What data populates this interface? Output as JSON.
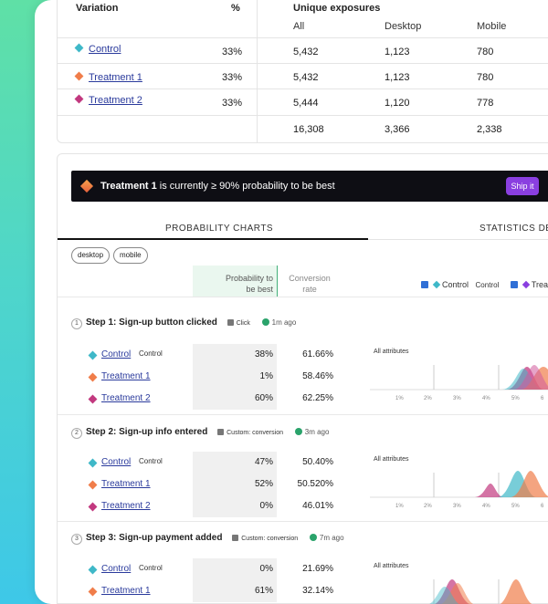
{
  "top_table": {
    "headers": {
      "variation": "Variation",
      "percent": "%",
      "unique_exposures": "Unique exposures"
    },
    "subheaders": {
      "all": "All",
      "desktop": "Desktop",
      "mobile": "Mobile"
    },
    "rows": [
      {
        "name": "Control",
        "color": "#3fb8c8",
        "percent": "33%",
        "all": "5,432",
        "desktop": "1,123",
        "mobile": "780"
      },
      {
        "name": "Treatment 1",
        "color": "#f07d4a",
        "percent": "33%",
        "all": "5,432",
        "desktop": "1,123",
        "mobile": "780"
      },
      {
        "name": "Treatment 2",
        "color": "#c2397f",
        "percent": "33%",
        "all": "5,444",
        "desktop": "1,120",
        "mobile": "778"
      }
    ],
    "totals": {
      "all": "16,308",
      "desktop": "3,366",
      "mobile": "2,338"
    }
  },
  "banner": {
    "variant": "Treatment 1",
    "message": " is currently ≥ 90% probability to be best",
    "ship_label": "Ship it"
  },
  "tabs": {
    "probability": "PROBABILITY CHARTS",
    "statistics": "STATISTICS DET"
  },
  "filters": {
    "desktop": "desktop",
    "mobile": "mobile"
  },
  "columns": {
    "prob_line1": "Probability to",
    "prob_line2": "be best",
    "conv_line1": "Conversion",
    "conv_line2": "rate"
  },
  "legend": {
    "control": "Control",
    "control_sub": "Control",
    "treatment": "Treat"
  },
  "steps": [
    {
      "num": "1",
      "title": "Step 1:  Sign-up button clicked",
      "tag": "Click",
      "ago": "1m ago",
      "rows": [
        {
          "name": "Control",
          "control_tag": "Control",
          "prob": "38%",
          "conv": "61.66%"
        },
        {
          "name": "Treatment 1",
          "control_tag": "",
          "prob": "1%",
          "conv": "58.46%"
        },
        {
          "name": "Treatment 2",
          "control_tag": "",
          "prob": "60%",
          "conv": "62.25%"
        }
      ],
      "chart_label": "All attributes",
      "ticks": [
        "1%",
        "2%",
        "3%",
        "4%",
        "5%",
        "6"
      ]
    },
    {
      "num": "2",
      "title": "Step 2:  Sign-up info entered",
      "tag": "Custom: conversion",
      "ago": "3m ago",
      "rows": [
        {
          "name": "Control",
          "control_tag": "Control",
          "prob": "47%",
          "conv": "50.40%"
        },
        {
          "name": "Treatment 1",
          "control_tag": "",
          "prob": "52%",
          "conv": "50.520%"
        },
        {
          "name": "Treatment 2",
          "control_tag": "",
          "prob": "0%",
          "conv": "46.01%"
        }
      ],
      "chart_label": "All attributes",
      "ticks": [
        "1%",
        "2%",
        "3%",
        "4%",
        "5%",
        "6"
      ]
    },
    {
      "num": "3",
      "title": "Step 3:  Sign-up payment added",
      "tag": "Custom: conversion",
      "ago": "7m ago",
      "rows": [
        {
          "name": "Control",
          "control_tag": "Control",
          "prob": "0%",
          "conv": "21.69%"
        },
        {
          "name": "Treatment 1",
          "control_tag": "",
          "prob": "61%",
          "conv": "32.14%"
        }
      ],
      "chart_label": "All attributes",
      "ticks": []
    }
  ],
  "colors": {
    "control": "#3fb8c8",
    "treatment1": "#f07d4a",
    "treatment2": "#c2397f",
    "ship": "#8a3fe0",
    "banner": "#0e0e14"
  }
}
